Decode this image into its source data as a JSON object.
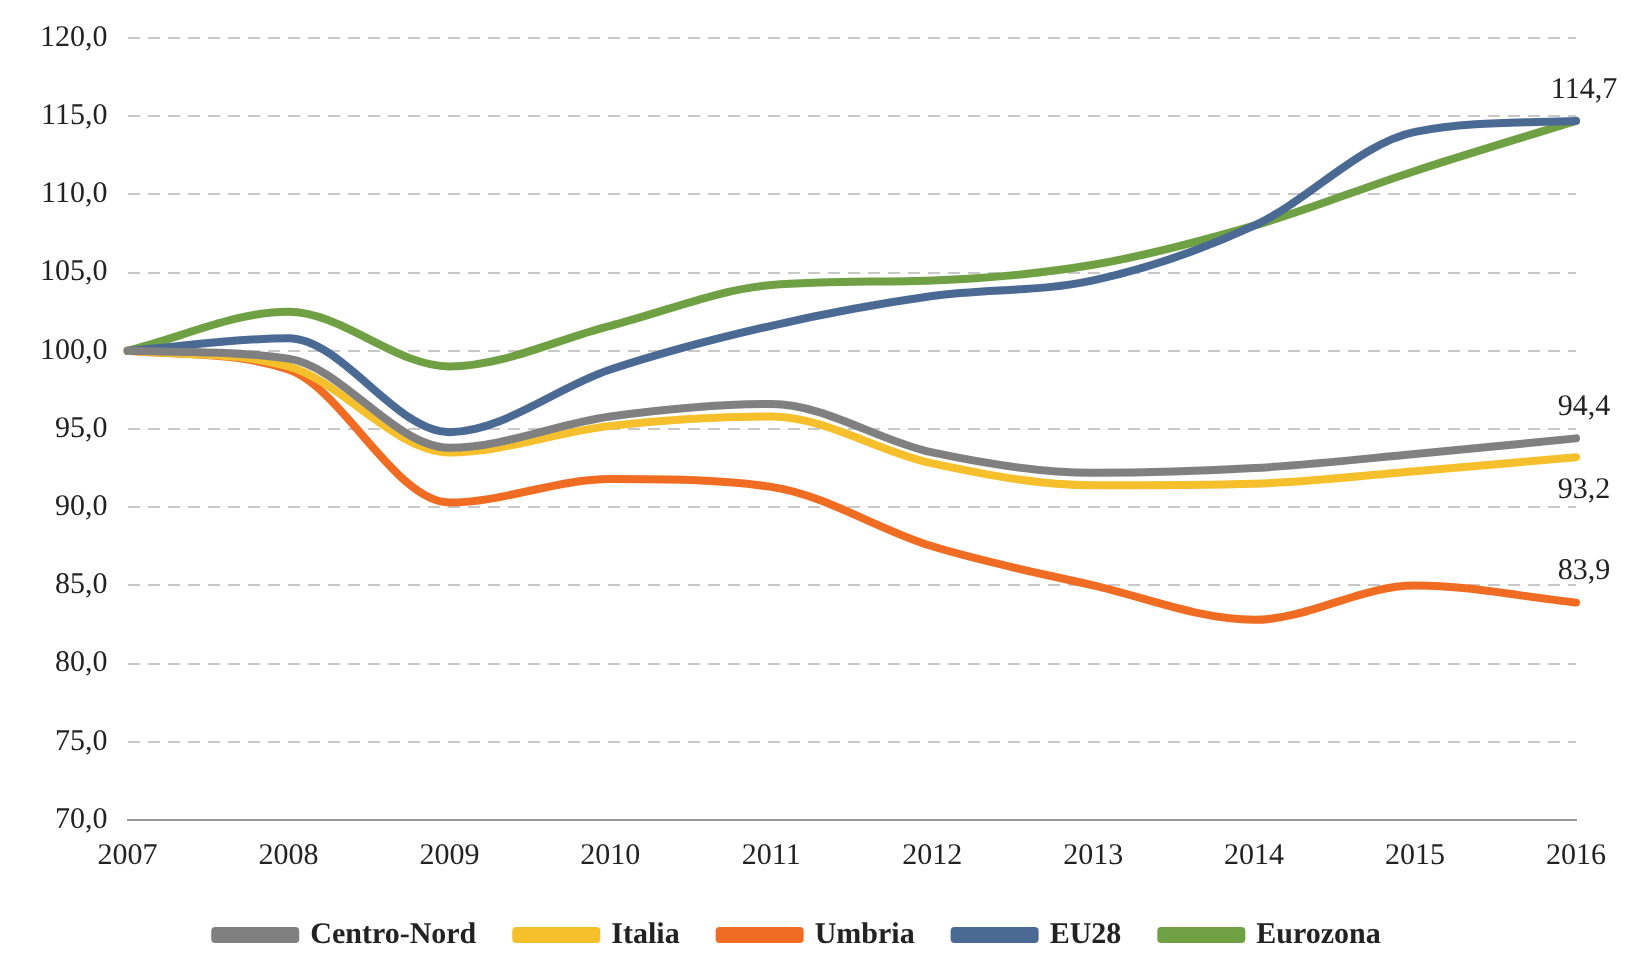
{
  "chart_data": {
    "type": "line",
    "categories": [
      "2007",
      "2008",
      "2009",
      "2010",
      "2011",
      "2012",
      "2013",
      "2014",
      "2015",
      "2016"
    ],
    "series": [
      {
        "name": "Centro-Nord",
        "color": "#808080",
        "values": [
          100,
          99.5,
          93.8,
          95.8,
          96.6,
          93.5,
          92.2,
          92.5,
          93.4,
          94.4
        ],
        "value_labels": [
          null,
          null,
          null,
          null,
          null,
          null,
          null,
          null,
          null,
          "94,4"
        ]
      },
      {
        "name": "Italia",
        "color": "#f5c02c",
        "values": [
          100,
          99,
          93.5,
          95.2,
          95.8,
          92.8,
          91.4,
          91.5,
          92.3,
          93.2
        ],
        "value_labels": [
          null,
          null,
          null,
          null,
          null,
          null,
          null,
          null,
          null,
          "93,2"
        ]
      },
      {
        "name": "Umbria",
        "color": "#ef6c22",
        "values": [
          100,
          98.8,
          90.3,
          91.8,
          91.3,
          87.5,
          85,
          82.8,
          85,
          83.9
        ],
        "value_labels": [
          null,
          null,
          null,
          null,
          null,
          null,
          null,
          null,
          null,
          "83,9"
        ]
      },
      {
        "name": "EU28",
        "color": "#4a6a94",
        "values": [
          100,
          100.8,
          94.8,
          98.8,
          101.6,
          103.5,
          104.5,
          108,
          114,
          114.7
        ],
        "value_labels": [
          null,
          null,
          null,
          null,
          null,
          null,
          null,
          null,
          null,
          null
        ]
      },
      {
        "name": "Eurozona",
        "color": "#70a044",
        "values": [
          100,
          102.5,
          99,
          101.6,
          104.2,
          104.5,
          105.5,
          108,
          111.5,
          114.7
        ],
        "value_labels": [
          null,
          null,
          null,
          null,
          null,
          null,
          null,
          null,
          null,
          "114,7"
        ]
      }
    ],
    "ylim": [
      70,
      120
    ],
    "yticks": [
      {
        "value": 70,
        "label": "70,0"
      },
      {
        "value": 75,
        "label": "75,0"
      },
      {
        "value": 80,
        "label": "80,0"
      },
      {
        "value": 85,
        "label": "85,0"
      },
      {
        "value": 90,
        "label": "90,0"
      },
      {
        "value": 95,
        "label": "95,0"
      },
      {
        "value": 100,
        "label": "100,0"
      },
      {
        "value": 105,
        "label": "105,0"
      },
      {
        "value": 110,
        "label": "110,0"
      },
      {
        "value": 115,
        "label": "115,0"
      },
      {
        "value": 120,
        "label": "120,0"
      }
    ],
    "grid": "y",
    "legend": "bottom",
    "marker": "none",
    "line_style": "solid"
  }
}
